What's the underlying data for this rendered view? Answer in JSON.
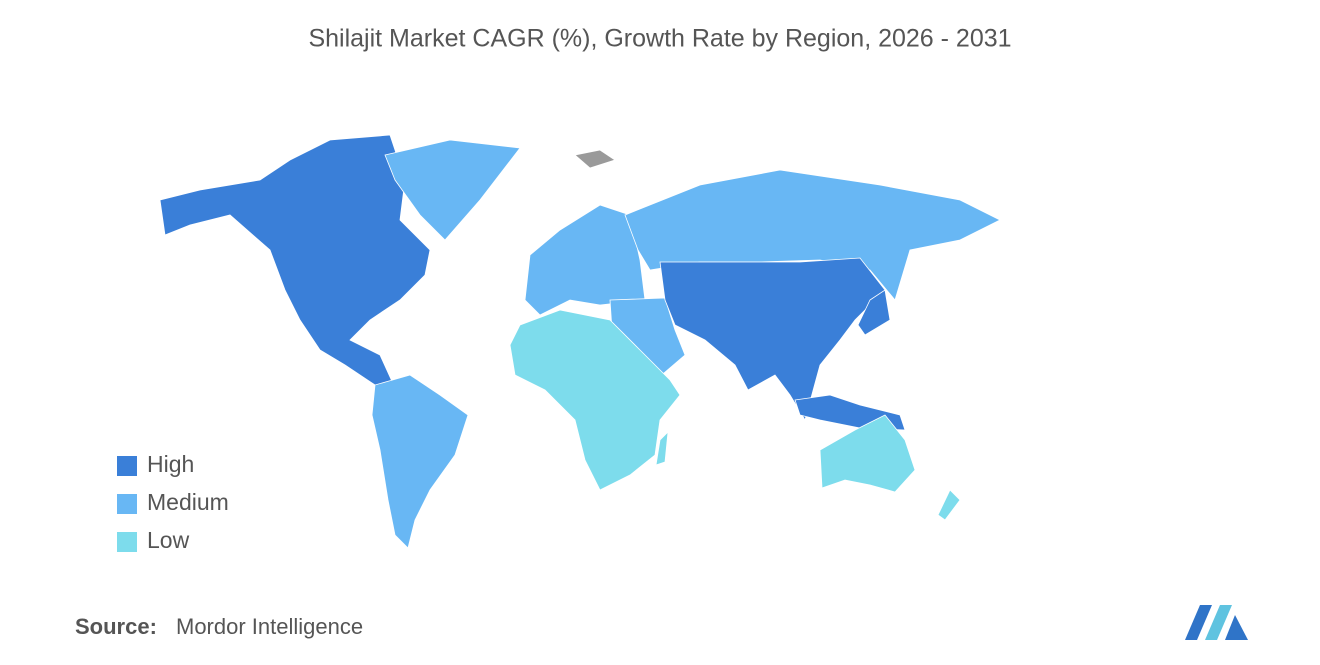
{
  "title": "Shilajit Market CAGR (%), Growth Rate by Region, 2026 - 2031",
  "legend": {
    "items": [
      {
        "label": "High",
        "color": "#3a7fd8"
      },
      {
        "label": "Medium",
        "color": "#68b7f4"
      },
      {
        "label": "Low",
        "color": "#7ddcec"
      }
    ]
  },
  "source": {
    "label": "Source:",
    "text": "Mordor Intelligence"
  }
}
